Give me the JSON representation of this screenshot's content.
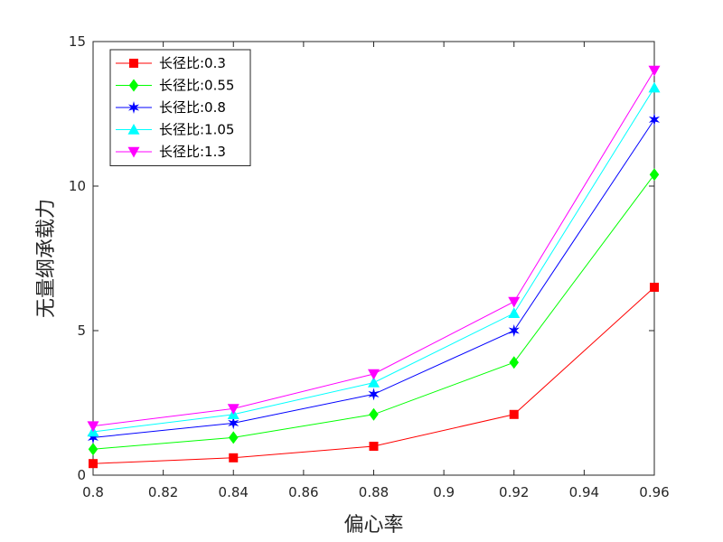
{
  "chart_data": {
    "type": "line",
    "title": "",
    "xlabel": "偏心率",
    "ylabel": "无量纲承载力",
    "xlim": [
      0.8,
      0.96
    ],
    "ylim": [
      0,
      15
    ],
    "xticks": [
      "0.8",
      "0.82",
      "0.84",
      "0.86",
      "0.88",
      "0.9",
      "0.92",
      "0.94",
      "0.96"
    ],
    "yticks": [
      "0",
      "5",
      "10",
      "15"
    ],
    "grid": false,
    "legend_position": "top-left",
    "x": [
      0.8,
      0.84,
      0.88,
      0.92,
      0.96
    ],
    "series": [
      {
        "name": "长径比:0.3",
        "color": "#ff0000",
        "marker": "square",
        "values": [
          0.4,
          0.6,
          1.0,
          2.1,
          6.5
        ]
      },
      {
        "name": "长径比:0.55",
        "color": "#00ff00",
        "marker": "diamond",
        "values": [
          0.9,
          1.3,
          2.1,
          3.9,
          10.4
        ]
      },
      {
        "name": "长径比:0.8",
        "color": "#0000ff",
        "marker": "star",
        "values": [
          1.3,
          1.8,
          2.8,
          5.0,
          12.3
        ]
      },
      {
        "name": "长径比:1.05",
        "color": "#00ffff",
        "marker": "triangle-up",
        "values": [
          1.5,
          2.1,
          3.2,
          5.6,
          13.4
        ]
      },
      {
        "name": "长径比:1.3",
        "color": "#ff00ff",
        "marker": "triangle-down",
        "values": [
          1.7,
          2.3,
          3.5,
          6.0,
          14.0
        ]
      }
    ]
  }
}
